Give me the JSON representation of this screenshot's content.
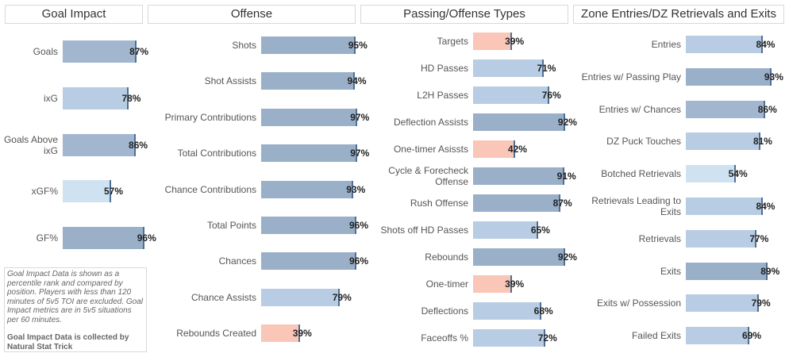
{
  "chart_data": [
    {
      "type": "bar",
      "title": "Goal Impact",
      "categories": [
        "Goals",
        "ixG",
        "Goals Above ixG",
        "xGF%",
        "GF%"
      ],
      "values": [
        87,
        78,
        86,
        57,
        96
      ],
      "value_labels": [
        "87%",
        "78%",
        "86%",
        "57%",
        "96%"
      ],
      "colors": [
        "#a3b6cf",
        "#b8cde3",
        "#a3b6cf",
        "#cfe2f1",
        "#9aafc8"
      ],
      "xlim": [
        0,
        100
      ]
    },
    {
      "type": "bar",
      "title": "Offense",
      "categories": [
        "Shots",
        "Shot Assists",
        "Primary Contributions",
        "Total Contributions",
        "Chance Contributions",
        "Total Points",
        "Chances",
        "Chance Assists",
        "Rebounds Created"
      ],
      "values": [
        95,
        94,
        97,
        97,
        93,
        96,
        96,
        79,
        39
      ],
      "value_labels": [
        "95%",
        "94%",
        "97%",
        "97%",
        "93%",
        "96%",
        "96%",
        "79%",
        "39%"
      ],
      "colors": [
        "#9aafc8",
        "#9aafc8",
        "#9aafc8",
        "#9aafc8",
        "#9aafc8",
        "#9aafc8",
        "#9aafc8",
        "#b8cde3",
        "#f9c6b8"
      ],
      "xlim": [
        0,
        100
      ]
    },
    {
      "type": "bar",
      "title": "Passing/Offense Types",
      "categories": [
        "Targets",
        "HD Passes",
        "L2H Passes",
        "Deflection Assists",
        "One-timer Asissts",
        "Cycle & Forecheck Offense",
        "Rush Offense",
        "Shots off HD Passes",
        "Rebounds",
        "One-timer",
        "Deflections",
        "Faceoffs %"
      ],
      "values": [
        39,
        71,
        76,
        92,
        42,
        91,
        87,
        65,
        92,
        39,
        68,
        72
      ],
      "value_labels": [
        "39%",
        "71%",
        "76%",
        "92%",
        "42%",
        "91%",
        "87%",
        "65%",
        "92%",
        "39%",
        "68%",
        "72%"
      ],
      "colors": [
        "#f9c6b8",
        "#b8cde3",
        "#b8cde3",
        "#9aafc8",
        "#f9c6b8",
        "#9aafc8",
        "#9aafc8",
        "#b8cde3",
        "#9aafc8",
        "#f9c6b8",
        "#b8cde3",
        "#b8cde3"
      ],
      "xlim": [
        0,
        100
      ]
    },
    {
      "type": "bar",
      "title": "Zone Entries/DZ Retrievals and Exits",
      "categories": [
        "Entries",
        "Entries w/ Passing Play",
        "Entries w/ Chances",
        "DZ Puck Touches",
        "Botched Retrievals",
        "Retrievals Leading to Exits",
        "Retrievals",
        "Exits",
        "Exits w/ Possession",
        "Failed Exits"
      ],
      "values": [
        84,
        93,
        86,
        81,
        54,
        84,
        77,
        89,
        79,
        69
      ],
      "value_labels": [
        "84%",
        "93%",
        "86%",
        "81%",
        "54%",
        "84%",
        "77%",
        "89%",
        "79%",
        "69%"
      ],
      "colors": [
        "#b8cde3",
        "#9aafc8",
        "#a3b6cf",
        "#b8cde3",
        "#cfe2f1",
        "#b8cde3",
        "#b8cde3",
        "#9aafc8",
        "#b8cde3",
        "#b8cde3"
      ],
      "xlim": [
        0,
        100
      ]
    }
  ],
  "note": {
    "text": "Goal Impact Data is shown as a percentile rank and compared by position. Players with less than 120 minutes of 5v5 TOI are excluded. Goal Impact metrics are in 5v5 situations per 60 minutes.",
    "source": "Goal Impact Data is collected by Natural Stat Trick"
  }
}
